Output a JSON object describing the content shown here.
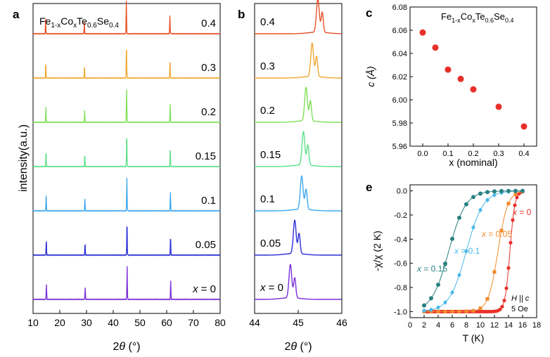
{
  "figure": {
    "composition": "Fe",
    "composition_sub1": "1-x",
    "composition_mid": "Co",
    "composition_sub2": "x",
    "composition_te": "Te",
    "composition_sub3": "0.6",
    "composition_se": "Se",
    "composition_sub4": "0.4"
  },
  "chart_data": [
    {
      "panel": "a",
      "type": "line",
      "title": "",
      "xlabel_theta": "θ",
      "xlabel_prefix": "2",
      "xlabel_unit": " (°)",
      "ylabel": "intensity(a.u.)",
      "xlim": [
        10,
        80
      ],
      "xticks": [
        "10",
        "20",
        "30",
        "40",
        "50",
        "60",
        "70",
        "80"
      ],
      "peaks_deg": [
        15.0,
        29.5,
        45.2,
        61.5
      ],
      "peak_heights": [
        0.45,
        0.35,
        1.0,
        0.55
      ],
      "series": [
        {
          "name": "x = 0",
          "color": "#7b2fd8"
        },
        {
          "name": "0.05",
          "color": "#2b2fd6"
        },
        {
          "name": "0.1",
          "color": "#3fa8f0"
        },
        {
          "name": "0.15",
          "color": "#5fe08a"
        },
        {
          "name": "0.2",
          "color": "#7fe05a"
        },
        {
          "name": "0.3",
          "color": "#f0a830"
        },
        {
          "name": "0.4",
          "color": "#e8502a"
        }
      ]
    },
    {
      "panel": "b",
      "type": "line",
      "xlabel_prefix": "2",
      "xlabel_theta": "θ",
      "xlabel_unit": " (°)",
      "xlim": [
        44,
        46
      ],
      "xticks": [
        "44",
        "45",
        "46"
      ],
      "peak_pos": [
        44.82,
        44.92,
        45.08,
        45.12,
        45.18,
        45.32,
        45.45
      ],
      "series_labels": [
        "x = 0",
        "0.05",
        "0.1",
        "0.15",
        "0.2",
        "0.3",
        "0.4"
      ]
    },
    {
      "panel": "c",
      "type": "scatter",
      "xlabel": "x (nominal)",
      "ylabel": "c (Å)",
      "xlim": [
        -0.05,
        0.45
      ],
      "ylim": [
        5.96,
        6.08
      ],
      "xticks": [
        "0.0",
        "0.1",
        "0.2",
        "0.3",
        "0.4"
      ],
      "yticks": [
        "5.96",
        "5.98",
        "6.00",
        "6.02",
        "6.04",
        "6.06",
        "6.08"
      ],
      "x": [
        0.0,
        0.05,
        0.1,
        0.15,
        0.2,
        0.3,
        0.4
      ],
      "y": [
        6.058,
        6.045,
        6.026,
        6.018,
        6.009,
        5.994,
        5.977
      ],
      "color": "#e8302a"
    },
    {
      "panel": "e",
      "type": "line",
      "xlabel": "T (K)",
      "ylabel": "-χ/χ (2 K)",
      "xlim": [
        0,
        18
      ],
      "ylim": [
        -1.05,
        0.05
      ],
      "xticks": [
        "0",
        "2",
        "4",
        "6",
        "8",
        "10",
        "12",
        "14",
        "16",
        "18"
      ],
      "yticks": [
        "0.0",
        "-0.2",
        "-0.4",
        "-0.6",
        "-0.8",
        "-1.0"
      ],
      "field": "H || c",
      "field_value": "5 Oe",
      "series": [
        {
          "name": "x = 0",
          "color": "#e8302a",
          "Tc": 14.2
        },
        {
          "name": "x = 0.05",
          "color": "#f08a2a",
          "Tc": 12.5
        },
        {
          "name": "x = 0.1",
          "color": "#4ab8e8",
          "Tc": 8.0
        },
        {
          "name": "x = 0.15",
          "color": "#2a8080",
          "Tc": 5.5
        }
      ]
    }
  ],
  "panel_labels": {
    "a": "a",
    "b": "b",
    "c": "c",
    "e": "e"
  }
}
